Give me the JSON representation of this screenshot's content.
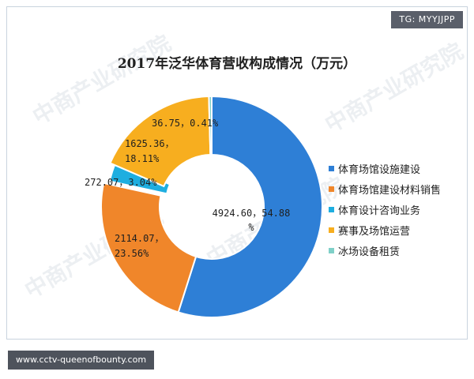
{
  "tag": "TG: MYYJJPP",
  "footer": "www.cctv-queenofbounty.com",
  "watermark": "中商产业研究院",
  "chart_data": {
    "type": "pie",
    "title": "2017年泛华体育营收构成情况（万元）",
    "categories": [
      "体育场馆设施建设",
      "体育场馆建设材料销售",
      "体育设计咨询业务",
      "赛事及场馆运营",
      "冰场设备租赁"
    ],
    "values": [
      4924.6,
      2114.07,
      272.07,
      1625.36,
      36.75
    ],
    "percent": [
      54.88,
      23.56,
      3.04,
      18.11,
      0.41
    ],
    "data_labels": [
      [
        "4924.60，54.88",
        "%"
      ],
      [
        "2114.07，",
        "23.56%"
      ],
      [
        "272.07，3.04%"
      ],
      [
        "1625.36，",
        "18.11%"
      ],
      [
        "36.75，0.41%"
      ]
    ],
    "colors": [
      "#2e7fd6",
      "#f0862a",
      "#1eaee0",
      "#f7ae1f",
      "#7fd0c8"
    ],
    "legend_position": "right"
  }
}
